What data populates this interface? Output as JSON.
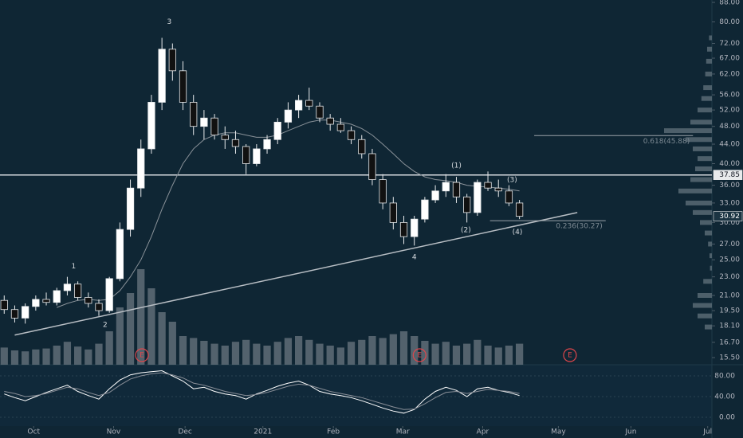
{
  "chart_data": {
    "type": "candlestick",
    "log_scale": true,
    "ylim": [
      15.5,
      88
    ],
    "yticks": [
      {
        "value": 88,
        "label": "88.00"
      },
      {
        "value": 80,
        "label": "80.00"
      },
      {
        "value": 72,
        "label": "72.00"
      },
      {
        "value": 67,
        "label": "67.00"
      },
      {
        "value": 62,
        "label": "62.00"
      },
      {
        "value": 56,
        "label": "56.00"
      },
      {
        "value": 52,
        "label": "52.00"
      },
      {
        "value": 48,
        "label": "48.00"
      },
      {
        "value": 44,
        "label": "44.00"
      },
      {
        "value": 40,
        "label": "40.00"
      },
      {
        "value": 36,
        "label": "36.00"
      },
      {
        "value": 33,
        "label": "33.00"
      },
      {
        "value": 30,
        "label": "30.00"
      },
      {
        "value": 27,
        "label": "27.00"
      },
      {
        "value": 25,
        "label": "25.00"
      },
      {
        "value": 23,
        "label": "23.00"
      },
      {
        "value": 21,
        "label": "21.00"
      },
      {
        "value": 19.5,
        "label": "19.50"
      },
      {
        "value": 18.1,
        "label": "18.10"
      },
      {
        "value": 16.7,
        "label": "16.70"
      },
      {
        "value": 15.5,
        "label": "15.50"
      }
    ],
    "xlim": [
      -0.4,
      67.3
    ],
    "xticks": [
      {
        "value": 2.8,
        "label": "Oct"
      },
      {
        "value": 10.4,
        "label": "Nov"
      },
      {
        "value": 17.2,
        "label": "Dec"
      },
      {
        "value": 24.6,
        "label": "2021"
      },
      {
        "value": 31.3,
        "label": "Feb"
      },
      {
        "value": 37.9,
        "label": "Mar"
      },
      {
        "value": 45.5,
        "label": "Apr"
      },
      {
        "value": 52.7,
        "label": "May"
      },
      {
        "value": 59.6,
        "label": "Jun"
      },
      {
        "value": 66.9,
        "label": "Jul"
      }
    ],
    "up_color": "#ffffff",
    "down_color": "#111111",
    "open": [
      20.5,
      19.6,
      18.8,
      19.9,
      20.6,
      20.3,
      21.5,
      22.2,
      20.8,
      20.2,
      19.5,
      22.8,
      29,
      35.5,
      43,
      54,
      70,
      63,
      54,
      48,
      50,
      46,
      45,
      43.5,
      40,
      43,
      45,
      49,
      52,
      54.5,
      53,
      50,
      48.5,
      47,
      45,
      42,
      37,
      33,
      30,
      28,
      30.5,
      33.5,
      35,
      36.5,
      34,
      31.5,
      36.5,
      35.5,
      35,
      33
    ],
    "high": [
      21,
      20,
      20.2,
      21,
      21.3,
      21.8,
      23,
      22.5,
      21.3,
      20.6,
      23,
      30,
      37,
      45,
      56,
      74,
      72,
      66,
      56,
      52,
      51,
      48,
      47,
      44,
      44,
      46,
      50,
      54,
      56,
      58,
      54,
      51,
      50,
      48,
      46,
      43,
      38,
      34,
      31,
      31,
      34,
      36,
      38,
      37.5,
      34.5,
      37,
      38.5,
      37,
      36,
      33.5
    ],
    "low": [
      19.2,
      18.4,
      18.3,
      19.5,
      20,
      20,
      21,
      20.5,
      19.8,
      19,
      19.3,
      22.5,
      28,
      34,
      42,
      52,
      60,
      52,
      46,
      45,
      45,
      43,
      42,
      38,
      39.5,
      42,
      44,
      47.5,
      50,
      52,
      49,
      47,
      46.5,
      44,
      41,
      36,
      32,
      29,
      27,
      26.8,
      30,
      33,
      34,
      33,
      30,
      31,
      35,
      34,
      32.5,
      30.5
    ],
    "close": [
      19.6,
      18.8,
      19.9,
      20.6,
      20.3,
      21.5,
      22.2,
      20.8,
      20.2,
      19.5,
      22.8,
      29,
      35.5,
      43,
      54,
      70,
      63,
      54,
      48,
      50,
      46,
      45,
      43.5,
      40,
      43,
      45,
      49,
      52,
      54.5,
      53,
      50,
      48.5,
      47,
      45,
      42,
      37,
      33,
      30,
      28,
      30.5,
      33.5,
      35,
      36.5,
      34,
      31.5,
      36.5,
      35.5,
      35,
      33,
      30.92
    ],
    "moving_average": [
      null,
      null,
      null,
      null,
      null,
      19.8,
      20.2,
      20.5,
      20.6,
      20.5,
      20.6,
      21.5,
      23,
      25,
      28,
      32,
      36,
      40,
      43,
      45,
      46,
      46.5,
      46.5,
      46,
      45.5,
      45.5,
      46,
      47,
      48,
      49,
      49.5,
      49.5,
      49,
      48.5,
      47.5,
      46,
      44,
      42,
      40,
      38.5,
      37.5,
      37,
      36.8,
      36.5,
      36,
      35.8,
      35.7,
      35.5,
      35.3,
      35
    ],
    "volume_ylim": [
      0,
      100
    ],
    "volume": [
      18,
      15,
      14,
      16,
      17,
      20,
      24,
      19,
      16,
      22,
      35,
      60,
      75,
      100,
      80,
      55,
      45,
      30,
      28,
      25,
      22,
      20,
      24,
      26,
      22,
      20,
      24,
      28,
      30,
      26,
      22,
      20,
      18,
      24,
      26,
      30,
      28,
      32,
      35,
      30,
      25,
      22,
      24,
      20,
      22,
      26,
      20,
      18,
      20,
      22
    ],
    "horizontal_level": 37.85,
    "trendline": {
      "x": [
        1,
        54.5
      ],
      "y": [
        17.3,
        31.5
      ]
    },
    "fib_levels": [
      {
        "label": "0.618(45.88)",
        "value": 45.88,
        "x": [
          50.4,
          65.5
        ]
      },
      {
        "label": "0.236(30.27)",
        "value": 30.27,
        "x": [
          46.2,
          57.2
        ]
      }
    ],
    "price_labels": [
      37.85,
      30.92
    ],
    "wave_labels": [
      {
        "text": "1",
        "x": 6.6,
        "y": 24.2
      },
      {
        "text": "2",
        "x": 9.6,
        "y": 18.2
      },
      {
        "text": "3",
        "x": 15.7,
        "y": 80
      },
      {
        "text": "4",
        "x": 39,
        "y": 25.3
      },
      {
        "text": "(1)",
        "x": 43,
        "y": 39.6
      },
      {
        "text": "(2)",
        "x": 43.9,
        "y": 28.9
      },
      {
        "text": "(3)",
        "x": 48.3,
        "y": 36.9
      },
      {
        "text": "(4)",
        "x": 48.8,
        "y": 28.6
      }
    ],
    "events": [
      {
        "text": "E",
        "x": 13.1
      },
      {
        "text": "E",
        "x": 39.5
      },
      {
        "text": "E",
        "x": 53.8
      }
    ],
    "volume_profile": {
      "prices": [
        74,
        70,
        66,
        62,
        58,
        55,
        52,
        49,
        47,
        45,
        43,
        41,
        39,
        37,
        35,
        33,
        31.5,
        30,
        28.5,
        27,
        25.5,
        24,
        22.5,
        21,
        20,
        19,
        18
      ],
      "sizes": [
        6,
        10,
        12,
        14,
        18,
        22,
        30,
        45,
        100,
        55,
        40,
        30,
        35,
        45,
        70,
        55,
        40,
        25,
        15,
        8,
        5,
        4,
        18,
        30,
        40,
        30,
        15
      ]
    },
    "indicator": {
      "ylim": [
        -17,
        101.5
      ],
      "yticks": [
        {
          "value": 80,
          "label": "80.00"
        },
        {
          "value": 40,
          "label": "40.00"
        },
        {
          "value": 0,
          "label": "0.00"
        }
      ],
      "series": [
        {
          "color": "#ffffff",
          "values": [
            45,
            38,
            32,
            40,
            48,
            55,
            62,
            50,
            42,
            35,
            55,
            72,
            82,
            86,
            88,
            90,
            80,
            70,
            55,
            58,
            50,
            45,
            42,
            35,
            45,
            52,
            60,
            66,
            70,
            62,
            50,
            45,
            42,
            38,
            32,
            25,
            18,
            12,
            8,
            15,
            35,
            50,
            58,
            52,
            40,
            55,
            58,
            52,
            48,
            42
          ]
        },
        {
          "color": "#8a8f98",
          "values": [
            50,
            46,
            40,
            42,
            46,
            52,
            58,
            55,
            48,
            42,
            48,
            62,
            74,
            80,
            84,
            86,
            82,
            76,
            66,
            62,
            56,
            50,
            46,
            42,
            44,
            48,
            54,
            60,
            64,
            62,
            56,
            50,
            46,
            42,
            38,
            32,
            26,
            20,
            15,
            16,
            26,
            38,
            48,
            50,
            46,
            50,
            54,
            52,
            50,
            46
          ]
        }
      ]
    }
  }
}
